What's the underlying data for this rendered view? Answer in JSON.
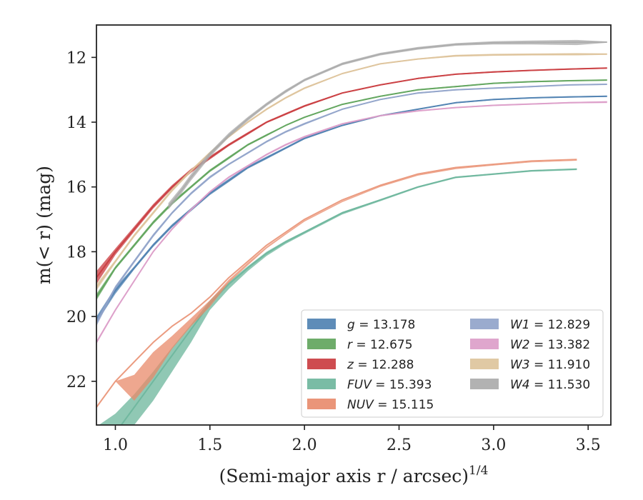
{
  "chart_data": {
    "type": "line",
    "xlabel": "(Semi-major axis r / arcsec)",
    "xlabel_exponent": "1/4",
    "ylabel": "m(< r) (mag)",
    "xlim": [
      0.9,
      3.62
    ],
    "ylim": [
      23.35,
      11.0
    ],
    "y_inverted": true,
    "x_ticks": [
      "1.0",
      "1.5",
      "2.0",
      "2.5",
      "3.0",
      "3.5"
    ],
    "x_tick_values": [
      1.0,
      1.5,
      2.0,
      2.5,
      3.0,
      3.5
    ],
    "y_ticks": [
      "12",
      "14",
      "16",
      "18",
      "20",
      "22"
    ],
    "y_tick_values": [
      12,
      14,
      16,
      18,
      20,
      22
    ],
    "grid": false,
    "legend_position": "lower-right",
    "legend_columns": 2,
    "series": [
      {
        "name": "g = 13.178",
        "label_var": "g",
        "label_val": "13.178",
        "color": "#4c7fb0",
        "x": [
          0.9,
          1.0,
          1.1,
          1.2,
          1.3,
          1.4,
          1.5,
          1.6,
          1.7,
          1.8,
          1.9,
          2.0,
          2.2,
          2.4,
          2.6,
          2.8,
          3.0,
          3.2,
          3.4,
          3.6
        ],
        "y": [
          20.1,
          19.2,
          18.5,
          17.8,
          17.2,
          16.7,
          16.2,
          15.8,
          15.4,
          15.1,
          14.8,
          14.5,
          14.1,
          13.8,
          13.6,
          13.4,
          13.3,
          13.25,
          13.22,
          13.2
        ],
        "lo": [
          20.0,
          19.1,
          18.45,
          17.75,
          17.15,
          16.65,
          16.15,
          15.75,
          15.36,
          15.06,
          14.77,
          14.47,
          14.08,
          13.78,
          13.58,
          13.38,
          13.28,
          13.23,
          13.2,
          13.18
        ],
        "hi": [
          20.2,
          19.3,
          18.55,
          17.85,
          17.25,
          16.75,
          16.25,
          15.85,
          15.44,
          15.14,
          14.83,
          14.53,
          14.12,
          13.82,
          13.62,
          13.42,
          13.32,
          13.27,
          13.24,
          13.22
        ]
      },
      {
        "name": "r = 12.675",
        "label_var": "r",
        "label_val": "12.675",
        "color": "#5ea35a",
        "x": [
          0.9,
          1.0,
          1.1,
          1.2,
          1.3,
          1.4,
          1.5,
          1.6,
          1.7,
          1.8,
          1.9,
          2.0,
          2.2,
          2.4,
          2.6,
          2.8,
          3.0,
          3.2,
          3.4,
          3.6
        ],
        "y": [
          19.4,
          18.5,
          17.8,
          17.1,
          16.5,
          16.0,
          15.5,
          15.1,
          14.7,
          14.4,
          14.1,
          13.85,
          13.45,
          13.2,
          13.0,
          12.9,
          12.8,
          12.75,
          12.72,
          12.7
        ],
        "lo": [
          19.3,
          18.45,
          17.75,
          17.05,
          16.45,
          15.96,
          15.46,
          15.06,
          14.67,
          14.37,
          14.08,
          13.83,
          13.43,
          13.18,
          12.98,
          12.88,
          12.78,
          12.73,
          12.7,
          12.68
        ],
        "hi": [
          19.5,
          18.55,
          17.85,
          17.15,
          16.55,
          16.04,
          15.54,
          15.14,
          14.73,
          14.43,
          14.12,
          13.87,
          13.47,
          13.22,
          13.02,
          12.92,
          12.82,
          12.77,
          12.74,
          12.72
        ]
      },
      {
        "name": "z = 12.288",
        "label_var": "z",
        "label_val": "12.288",
        "color": "#c9393d",
        "x": [
          0.9,
          1.0,
          1.1,
          1.2,
          1.3,
          1.4,
          1.5,
          1.6,
          1.7,
          1.8,
          1.9,
          2.0,
          2.2,
          2.4,
          2.6,
          2.8,
          3.0,
          3.2,
          3.4,
          3.6
        ],
        "y": [
          18.8,
          18.0,
          17.3,
          16.6,
          16.0,
          15.5,
          15.1,
          14.7,
          14.35,
          14.0,
          13.75,
          13.5,
          13.1,
          12.85,
          12.65,
          12.52,
          12.45,
          12.4,
          12.36,
          12.33
        ],
        "lo": [
          18.6,
          17.9,
          17.22,
          16.53,
          15.94,
          15.44,
          15.05,
          14.66,
          14.31,
          13.97,
          13.72,
          13.47,
          13.08,
          12.83,
          12.63,
          12.5,
          12.43,
          12.38,
          12.34,
          12.31
        ],
        "hi": [
          19.0,
          18.1,
          17.38,
          16.67,
          16.06,
          15.56,
          15.15,
          14.74,
          14.39,
          14.03,
          13.78,
          13.53,
          13.12,
          12.87,
          12.67,
          12.54,
          12.47,
          12.42,
          12.38,
          12.35
        ]
      },
      {
        "name": "FUV = 15.393",
        "label_var": "FUV",
        "label_val": "15.393",
        "color": "#6bb59b",
        "x": [
          0.9,
          1.0,
          1.1,
          1.2,
          1.3,
          1.4,
          1.5,
          1.6,
          1.7,
          1.8,
          1.9,
          2.0,
          2.2,
          2.4,
          2.6,
          2.8,
          3.0,
          3.2,
          3.44
        ],
        "y": [
          24.0,
          23.6,
          22.8,
          22.0,
          21.2,
          20.4,
          19.6,
          19.0,
          18.5,
          18.05,
          17.7,
          17.4,
          16.8,
          16.4,
          16.0,
          15.7,
          15.6,
          15.5,
          15.45
        ],
        "lo": [
          23.4,
          23.0,
          22.4,
          21.7,
          20.95,
          20.25,
          19.5,
          18.93,
          18.45,
          18.0,
          17.66,
          17.37,
          16.77,
          16.38,
          15.98,
          15.68,
          15.58,
          15.48,
          15.43
        ],
        "hi": [
          24.6,
          24.2,
          23.35,
          22.6,
          21.7,
          20.8,
          19.8,
          19.15,
          18.6,
          18.13,
          17.76,
          17.45,
          16.85,
          16.44,
          16.03,
          15.73,
          15.63,
          15.53,
          15.48
        ]
      },
      {
        "name": "NUV = 15.115",
        "label_var": "NUV",
        "label_val": "15.115",
        "color": "#e8896a",
        "x": [
          0.9,
          1.0,
          1.1,
          1.2,
          1.3,
          1.4,
          1.5,
          1.6,
          1.7,
          1.8,
          1.9,
          2.0,
          2.2,
          2.4,
          2.6,
          2.8,
          3.0,
          3.2,
          3.44
        ],
        "y": [
          22.8,
          22.0,
          21.4,
          20.8,
          20.3,
          19.9,
          19.4,
          18.8,
          18.3,
          17.8,
          17.4,
          17.0,
          16.4,
          15.95,
          15.6,
          15.4,
          15.3,
          15.2,
          15.15
        ],
        "lo": [
          22.8,
          22.0,
          21.8,
          21.1,
          20.6,
          20.05,
          19.5,
          18.86,
          18.34,
          17.84,
          17.43,
          17.03,
          16.43,
          15.97,
          15.62,
          15.42,
          15.32,
          15.22,
          15.17
        ],
        "hi": [
          22.8,
          22.0,
          22.6,
          21.9,
          21.0,
          20.3,
          19.7,
          18.96,
          18.42,
          17.9,
          17.48,
          17.07,
          16.47,
          16.0,
          15.65,
          15.45,
          15.34,
          15.24,
          15.19
        ]
      },
      {
        "name": "W1 = 12.829",
        "label_var": "W1",
        "label_val": "12.829",
        "color": "#8fa2c9",
        "x": [
          0.9,
          1.0,
          1.1,
          1.2,
          1.3,
          1.4,
          1.5,
          1.6,
          1.7,
          1.8,
          1.9,
          2.0,
          2.2,
          2.4,
          2.6,
          2.8,
          3.0,
          3.2,
          3.4,
          3.6
        ],
        "y": [
          20.2,
          19.1,
          18.3,
          17.5,
          16.8,
          16.2,
          15.7,
          15.3,
          14.95,
          14.6,
          14.3,
          14.05,
          13.6,
          13.3,
          13.1,
          13.0,
          12.95,
          12.9,
          12.85,
          12.83
        ],
        "lo": [
          20.1,
          19.05,
          18.25,
          17.45,
          16.76,
          16.16,
          15.66,
          15.27,
          14.92,
          14.57,
          14.27,
          14.02,
          13.58,
          13.28,
          13.08,
          12.98,
          12.93,
          12.88,
          12.83,
          12.81
        ],
        "hi": [
          20.3,
          19.15,
          18.35,
          17.55,
          16.84,
          16.24,
          15.74,
          15.33,
          14.98,
          14.63,
          14.33,
          14.08,
          13.62,
          13.32,
          13.12,
          13.02,
          12.97,
          12.92,
          12.87,
          12.85
        ]
      },
      {
        "name": "W2 = 13.382",
        "label_var": "W2",
        "label_val": "13.382",
        "color": "#dc9cc8",
        "x": [
          0.9,
          1.0,
          1.1,
          1.2,
          1.3,
          1.4,
          1.5,
          1.6,
          1.7,
          1.8,
          1.9,
          2.0,
          2.2,
          2.4,
          2.6,
          2.8,
          3.0,
          3.2,
          3.4,
          3.6
        ],
        "y": [
          20.8,
          19.8,
          18.9,
          18.0,
          17.3,
          16.7,
          16.15,
          15.7,
          15.35,
          15.0,
          14.7,
          14.45,
          14.05,
          13.8,
          13.65,
          13.55,
          13.48,
          13.44,
          13.4,
          13.38
        ],
        "lo": [
          20.75,
          19.76,
          18.87,
          17.97,
          17.27,
          16.67,
          16.12,
          15.67,
          15.32,
          14.97,
          14.67,
          14.42,
          14.03,
          13.78,
          13.63,
          13.53,
          13.46,
          13.42,
          13.38,
          13.35
        ],
        "hi": [
          20.85,
          19.84,
          18.93,
          18.03,
          17.33,
          16.73,
          16.18,
          15.73,
          15.38,
          15.03,
          14.73,
          14.48,
          14.07,
          13.82,
          13.67,
          13.57,
          13.5,
          13.46,
          13.42,
          13.41
        ]
      },
      {
        "name": "W3 = 11.910",
        "label_var": "W3",
        "label_val": "11.910",
        "color": "#ddc39a",
        "x": [
          0.9,
          1.0,
          1.1,
          1.2,
          1.3,
          1.4,
          1.5,
          1.6,
          1.7,
          1.8,
          1.9,
          2.0,
          2.2,
          2.4,
          2.6,
          2.8,
          3.0,
          3.2,
          3.44,
          3.6
        ],
        "y": [
          19.1,
          18.3,
          17.5,
          16.8,
          16.1,
          15.5,
          14.95,
          14.45,
          14.0,
          13.6,
          13.25,
          12.95,
          12.5,
          12.2,
          12.05,
          11.95,
          11.92,
          11.91,
          11.9,
          11.9
        ],
        "lo": [
          19.0,
          18.25,
          17.45,
          16.75,
          16.05,
          15.46,
          14.91,
          14.42,
          13.97,
          13.57,
          13.22,
          12.92,
          12.48,
          12.18,
          12.03,
          11.92,
          11.89,
          11.88,
          11.87,
          11.88
        ],
        "hi": [
          19.2,
          18.35,
          17.55,
          16.85,
          16.15,
          15.54,
          14.99,
          14.48,
          14.03,
          13.63,
          13.28,
          12.98,
          12.52,
          12.22,
          12.07,
          11.98,
          11.95,
          11.94,
          11.94,
          11.92
        ]
      },
      {
        "name": "W4 = 11.530",
        "label_var": "W4",
        "label_val": "11.530",
        "color": "#aaaaaa",
        "x": [
          1.28,
          1.35,
          1.4,
          1.5,
          1.6,
          1.7,
          1.8,
          1.9,
          2.0,
          2.2,
          2.4,
          2.6,
          2.8,
          3.0,
          3.2,
          3.44,
          3.6
        ],
        "y": [
          16.6,
          16.1,
          15.7,
          15.0,
          14.4,
          13.9,
          13.45,
          13.05,
          12.7,
          12.2,
          11.9,
          11.72,
          11.6,
          11.55,
          11.54,
          11.53,
          11.53
        ],
        "lo": [
          16.5,
          16.0,
          15.6,
          14.92,
          14.33,
          13.84,
          13.4,
          13.0,
          12.66,
          12.16,
          11.86,
          11.68,
          11.56,
          11.5,
          11.48,
          11.46,
          11.51
        ],
        "hi": [
          16.7,
          16.2,
          15.8,
          15.08,
          14.47,
          13.96,
          13.5,
          13.1,
          12.74,
          12.24,
          11.94,
          11.76,
          11.64,
          11.6,
          11.6,
          11.62,
          11.55
        ]
      }
    ]
  }
}
